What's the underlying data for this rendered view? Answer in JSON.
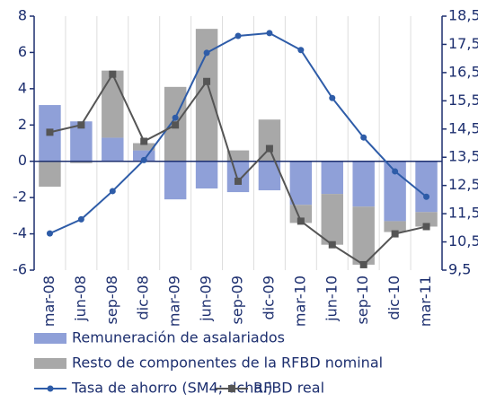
{
  "chart_data": {
    "type": "bar",
    "categories": [
      "mar-08",
      "jun-08",
      "sep-08",
      "dic-08",
      "mar-09",
      "jun-09",
      "sep-09",
      "dic-09",
      "mar-10",
      "jun-10",
      "sep-10",
      "dic-10",
      "mar-11"
    ],
    "series": [
      {
        "name": "Remuneración de asalariados",
        "type": "bar",
        "color": "#8fa0d8",
        "values": [
          3.1,
          2.2,
          1.3,
          0.6,
          -2.1,
          -1.5,
          -1.7,
          -1.6,
          -2.4,
          -1.8,
          -2.5,
          -3.3,
          -2.8
        ]
      },
      {
        "name": "Resto de componentes de la RFBD nominal",
        "type": "bar",
        "color": "#a8a8a8",
        "values": [
          -1.4,
          -0.1,
          3.7,
          0.4,
          4.1,
          7.3,
          0.6,
          2.3,
          -1.0,
          -2.8,
          -3.2,
          -0.6,
          -0.8
        ]
      },
      {
        "name": "Tasa de ahorro (SM4; dcha.)",
        "type": "line",
        "axis": "y2",
        "color": "#2e5ca8",
        "marker": "circle",
        "values": [
          10.8,
          11.3,
          12.3,
          13.4,
          14.9,
          17.2,
          17.8,
          17.9,
          17.3,
          15.6,
          14.2,
          13.0,
          12.1
        ]
      },
      {
        "name": "RFBD real",
        "type": "line",
        "color": "#555555",
        "marker": "square",
        "values": [
          1.6,
          2.0,
          4.8,
          1.1,
          2.0,
          4.4,
          -1.1,
          0.7,
          -3.3,
          -4.6,
          -5.7,
          -4.0,
          -3.6
        ]
      }
    ],
    "ylim": [
      -6,
      8
    ],
    "yticks": [
      -6,
      -4,
      -2,
      0,
      2,
      4,
      6,
      8
    ],
    "y2lim": [
      9.5,
      18.5
    ],
    "y2ticks": [
      {
        "value": 9.5,
        "label": "9,5"
      },
      {
        "value": 10.5,
        "label": "10,5"
      },
      {
        "value": 11.5,
        "label": "11,5"
      },
      {
        "value": 12.5,
        "label": "12,5"
      },
      {
        "value": 13.5,
        "label": "13,5"
      },
      {
        "value": 14.5,
        "label": "14,5"
      },
      {
        "value": 15.5,
        "label": "15,5"
      },
      {
        "value": 16.5,
        "label": "16,5"
      },
      {
        "value": 17.5,
        "label": "17,5"
      },
      {
        "value": 18.5,
        "label": "18,5"
      }
    ],
    "grid": false
  }
}
